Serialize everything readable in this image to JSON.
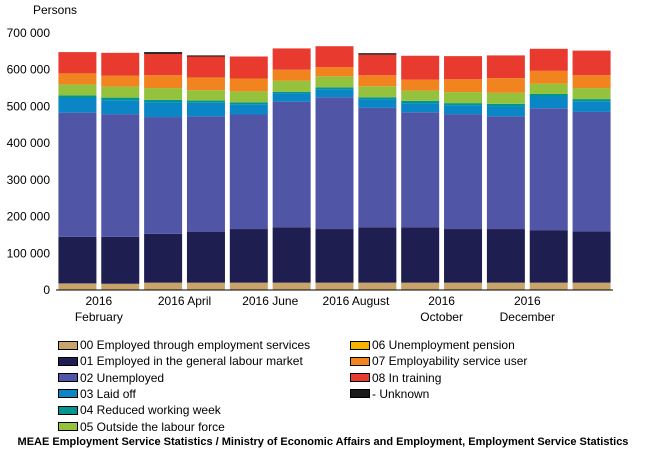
{
  "chart_data": {
    "type": "bar",
    "stacked": true,
    "title": "",
    "ylabel": "Persons",
    "xlabel": "",
    "ylim": [
      0,
      700000
    ],
    "yticks": [
      0,
      100000,
      200000,
      300000,
      400000,
      500000,
      600000,
      700000
    ],
    "ytick_labels": [
      "0",
      "100 000",
      "200 000",
      "300 000",
      "400 000",
      "500 000",
      "600 000",
      "700 000"
    ],
    "grid": false,
    "legend_position": "bottom",
    "x_labels": [
      {
        "index": 1,
        "lines": [
          "2016",
          "February"
        ]
      },
      {
        "index": 3,
        "lines": [
          "2016 April"
        ]
      },
      {
        "index": 5,
        "lines": [
          "2016 June"
        ]
      },
      {
        "index": 7,
        "lines": [
          "2016 August"
        ]
      },
      {
        "index": 9,
        "lines": [
          "2016",
          "October"
        ]
      },
      {
        "index": 11,
        "lines": [
          "2016",
          "December"
        ]
      }
    ],
    "categories": [
      "2016-01",
      "2016-02",
      "2016-03",
      "2016-04",
      "2016-05",
      "2016-06",
      "2016-07",
      "2016-08",
      "2016-09",
      "2016-10",
      "2016-11",
      "2016-12",
      "2017-01"
    ],
    "series": [
      {
        "name": "00 Employed through employment services",
        "color": "#c9a46a",
        "values": [
          18000,
          17000,
          20000,
          20000,
          20000,
          20000,
          20000,
          20000,
          20000,
          20000,
          20000,
          20000,
          20000
        ]
      },
      {
        "name": "01 Employed in the general labour market",
        "color": "#1e1e50",
        "values": [
          127000,
          128000,
          133000,
          138000,
          146000,
          151000,
          146000,
          151000,
          151000,
          146000,
          146000,
          143000,
          140000
        ]
      },
      {
        "name": "02 Unemployed",
        "color": "#5155a5",
        "values": [
          338000,
          334000,
          318000,
          315000,
          312000,
          342000,
          359000,
          325000,
          313000,
          313000,
          307000,
          332000,
          325000
        ]
      },
      {
        "name": "03 Laid off",
        "color": "#0a86c6",
        "values": [
          40000,
          38000,
          40000,
          37000,
          28000,
          22000,
          22000,
          24000,
          25000,
          24000,
          27000,
          32000,
          29000
        ]
      },
      {
        "name": "04 Reduced working week",
        "color": "#00968f",
        "values": [
          7000,
          7000,
          7000,
          6000,
          5000,
          5000,
          5000,
          5000,
          6000,
          6000,
          7000,
          7000,
          6000
        ]
      },
      {
        "name": "05 Outside the labour force",
        "color": "#95c23d",
        "values": [
          30000,
          30000,
          32000,
          28000,
          30000,
          30000,
          30000,
          30000,
          28000,
          30000,
          30000,
          28000,
          30000
        ]
      },
      {
        "name": "06 Unemployment pension",
        "color": "#f6b400",
        "values": [
          0,
          0,
          0,
          0,
          0,
          0,
          0,
          0,
          0,
          0,
          0,
          0,
          0
        ]
      },
      {
        "name": "07 Employability service user",
        "color": "#f1841e",
        "values": [
          30000,
          30000,
          35000,
          35000,
          35000,
          30000,
          25000,
          30000,
          30000,
          35000,
          40000,
          35000,
          35000
        ]
      },
      {
        "name": "08 In training",
        "color": "#e83a2f",
        "values": [
          58000,
          62000,
          58000,
          57000,
          60000,
          58000,
          57000,
          56000,
          65000,
          63000,
          62000,
          60000,
          67000
        ]
      },
      {
        "name": "- Unknown",
        "color": "#1a1a1a",
        "values": [
          0,
          0,
          5000,
          3000,
          0,
          0,
          0,
          4000,
          0,
          0,
          0,
          0,
          0
        ]
      }
    ]
  },
  "legend": {
    "items": [
      {
        "label": "00 Employed through employment services",
        "color": "#c9a46a"
      },
      {
        "label": "01 Employed in the general labour market",
        "color": "#1e1e50"
      },
      {
        "label": "02 Unemployed",
        "color": "#5155a5"
      },
      {
        "label": "03 Laid off",
        "color": "#0a86c6"
      },
      {
        "label": "04 Reduced working week",
        "color": "#00968f"
      },
      {
        "label": "05 Outside the labour force",
        "color": "#95c23d"
      },
      {
        "label": "06 Unemployment pension",
        "color": "#f6b400"
      },
      {
        "label": "07 Employability service user",
        "color": "#f1841e"
      },
      {
        "label": "08 In training",
        "color": "#e83a2f"
      },
      {
        "label": "- Unknown",
        "color": "#1a1a1a"
      }
    ]
  },
  "source": "MEAE Employment Service Statistics / Ministry of Economic Affairs and Employment, Employment Service Statistics"
}
